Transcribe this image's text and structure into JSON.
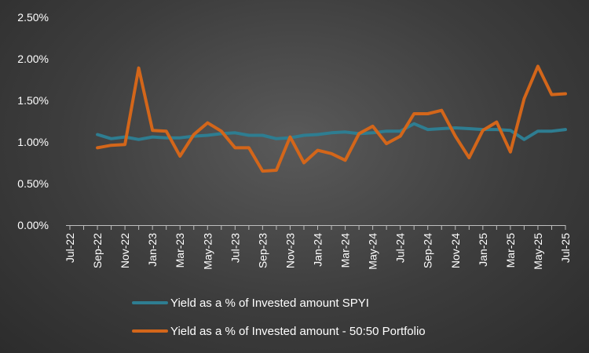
{
  "chart_data": {
    "type": "line",
    "title": "",
    "xlabel": "",
    "ylabel": "",
    "ylim": [
      0,
      2.5
    ],
    "y_ticks": [
      "0.00%",
      "0.50%",
      "1.00%",
      "1.50%",
      "2.00%",
      "2.50%"
    ],
    "grid": false,
    "legend_position": "bottom",
    "x_tick_labels": [
      "Jul-22",
      "Sep-22",
      "Nov-22",
      "Jan-23",
      "Mar-23",
      "May-23",
      "Jul-23",
      "Sep-23",
      "Nov-23",
      "Jan-24",
      "Mar-24",
      "May-24",
      "Jul-24",
      "Sep-24",
      "Nov-24",
      "Jan-25",
      "Mar-25",
      "May-25",
      "Jul-25"
    ],
    "x": [
      "Jul-22",
      "Aug-22",
      "Sep-22",
      "Oct-22",
      "Nov-22",
      "Dec-22",
      "Jan-23",
      "Feb-23",
      "Mar-23",
      "Apr-23",
      "May-23",
      "Jun-23",
      "Jul-23",
      "Aug-23",
      "Sep-23",
      "Oct-23",
      "Nov-23",
      "Dec-23",
      "Jan-24",
      "Feb-24",
      "Mar-24",
      "Apr-24",
      "May-24",
      "Jun-24",
      "Jul-24",
      "Aug-24",
      "Sep-24",
      "Oct-24",
      "Nov-24",
      "Dec-24",
      "Jan-25",
      "Feb-25",
      "Mar-25",
      "Apr-25",
      "May-25",
      "Jun-25",
      "Jul-25"
    ],
    "series": [
      {
        "name": "Yield as a % of Invested amount SPYI",
        "color": "#2e7d91",
        "values": [
          null,
          null,
          1.09,
          1.04,
          1.06,
          1.03,
          1.06,
          1.05,
          1.05,
          1.07,
          1.08,
          1.1,
          1.11,
          1.08,
          1.08,
          1.04,
          1.05,
          1.08,
          1.09,
          1.11,
          1.12,
          1.1,
          1.11,
          1.13,
          1.13,
          1.22,
          1.15,
          1.16,
          1.17,
          1.16,
          1.15,
          1.15,
          1.14,
          1.03,
          1.13,
          1.13,
          1.15
        ]
      },
      {
        "name": "Yield as a % of Invested amount - 50:50 Portfolio",
        "color": "#d3661a",
        "values": [
          null,
          null,
          0.93,
          0.96,
          0.97,
          1.89,
          1.14,
          1.13,
          0.83,
          1.09,
          1.23,
          1.13,
          0.93,
          0.93,
          0.65,
          0.66,
          1.06,
          0.75,
          0.9,
          0.86,
          0.78,
          1.1,
          1.19,
          0.98,
          1.07,
          1.34,
          1.34,
          1.38,
          1.07,
          0.81,
          1.14,
          1.24,
          0.88,
          1.52,
          1.91,
          1.57,
          1.58
        ]
      }
    ]
  }
}
